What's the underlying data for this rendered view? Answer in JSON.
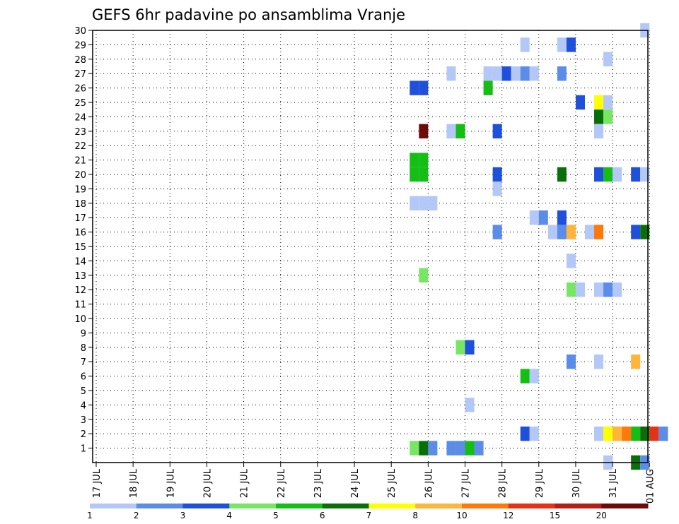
{
  "chart_data": {
    "type": "heatmap",
    "title": "GEFS 6hr padavine po ansamblima Vranje",
    "xlabel": "",
    "ylabel": "",
    "x_tick_labels": [
      "17 JUL",
      "18 JUL",
      "19 JUL",
      "20 JUL",
      "21 JUL",
      "22 JUL",
      "23 JUL",
      "24 JUL",
      "25 JUL",
      "26 JUL",
      "27 JUL",
      "28 JUL",
      "29 JUL",
      "30 JUL",
      "31 JUL",
      "01 AUG"
    ],
    "x_range_days": [
      0,
      15
    ],
    "y_range": [
      0,
      30
    ],
    "y_ticks": [
      1,
      2,
      3,
      4,
      5,
      6,
      7,
      8,
      9,
      10,
      11,
      12,
      13,
      14,
      15,
      16,
      17,
      18,
      19,
      20,
      21,
      22,
      23,
      24,
      25,
      26,
      27,
      28,
      29,
      30
    ],
    "grid": "dotted",
    "legend": "bottom",
    "colorbar": {
      "labels": [
        "1",
        "2",
        "3",
        "4",
        "5",
        "6",
        "7",
        "8",
        "10",
        "12",
        "15",
        "20"
      ],
      "colors": [
        "#b4c8f8",
        "#5a8ce8",
        "#1e50dc",
        "#78e664",
        "#14be14",
        "#0a6e0a",
        "#ffff00",
        "#ffb43c",
        "#ff780a",
        "#e63214",
        "#b41e14",
        "#6e0a0a"
      ]
    },
    "units_note": "x in days after 17 JUL 00Z, cell width 0.25 day (6 h); y = ensemble member; c = colour class index",
    "cells": [
      {
        "x": 14.75,
        "y": 30,
        "c": 0
      },
      {
        "x": 11.5,
        "y": 29,
        "c": 0
      },
      {
        "x": 12.5,
        "y": 29,
        "c": 0
      },
      {
        "x": 12.75,
        "y": 29,
        "c": 2
      },
      {
        "x": 13.75,
        "y": 28,
        "c": 0
      },
      {
        "x": 9.5,
        "y": 27,
        "c": 0
      },
      {
        "x": 10.5,
        "y": 27,
        "c": 0
      },
      {
        "x": 10.75,
        "y": 27,
        "c": 0
      },
      {
        "x": 11.0,
        "y": 27,
        "c": 2
      },
      {
        "x": 11.25,
        "y": 27,
        "c": 0
      },
      {
        "x": 11.5,
        "y": 27,
        "c": 1
      },
      {
        "x": 11.75,
        "y": 27,
        "c": 0
      },
      {
        "x": 12.5,
        "y": 27,
        "c": 1
      },
      {
        "x": 8.5,
        "y": 26,
        "c": 2
      },
      {
        "x": 8.75,
        "y": 26,
        "c": 2
      },
      {
        "x": 10.5,
        "y": 26,
        "c": 4
      },
      {
        "x": 13.0,
        "y": 25,
        "c": 2
      },
      {
        "x": 13.5,
        "y": 25,
        "c": 6
      },
      {
        "x": 13.75,
        "y": 25,
        "c": 0
      },
      {
        "x": 13.5,
        "y": 24,
        "c": 5
      },
      {
        "x": 13.75,
        "y": 24,
        "c": 3
      },
      {
        "x": 8.75,
        "y": 23,
        "c": 11
      },
      {
        "x": 9.5,
        "y": 23,
        "c": 0
      },
      {
        "x": 9.75,
        "y": 23,
        "c": 4
      },
      {
        "x": 10.75,
        "y": 23,
        "c": 2
      },
      {
        "x": 13.5,
        "y": 23,
        "c": 0
      },
      {
        "x": 8.5,
        "y": 21,
        "c": 4
      },
      {
        "x": 8.75,
        "y": 21,
        "c": 4
      },
      {
        "x": 8.5,
        "y": 20,
        "c": 4
      },
      {
        "x": 8.75,
        "y": 20,
        "c": 4
      },
      {
        "x": 10.75,
        "y": 20,
        "c": 2
      },
      {
        "x": 12.5,
        "y": 20,
        "c": 5
      },
      {
        "x": 13.5,
        "y": 20,
        "c": 2
      },
      {
        "x": 13.75,
        "y": 20,
        "c": 4
      },
      {
        "x": 14.0,
        "y": 20,
        "c": 0
      },
      {
        "x": 14.5,
        "y": 20,
        "c": 2
      },
      {
        "x": 14.75,
        "y": 20,
        "c": 0
      },
      {
        "x": 10.75,
        "y": 19,
        "c": 0
      },
      {
        "x": 8.5,
        "y": 18,
        "c": 0
      },
      {
        "x": 8.75,
        "y": 18,
        "c": 0
      },
      {
        "x": 9.0,
        "y": 18,
        "c": 0
      },
      {
        "x": 11.75,
        "y": 17,
        "c": 0
      },
      {
        "x": 12.0,
        "y": 17,
        "c": 1
      },
      {
        "x": 12.5,
        "y": 17,
        "c": 2
      },
      {
        "x": 10.75,
        "y": 16,
        "c": 1
      },
      {
        "x": 12.25,
        "y": 16,
        "c": 0
      },
      {
        "x": 12.5,
        "y": 16,
        "c": 1
      },
      {
        "x": 12.75,
        "y": 16,
        "c": 7
      },
      {
        "x": 13.25,
        "y": 16,
        "c": 0
      },
      {
        "x": 13.5,
        "y": 16,
        "c": 8
      },
      {
        "x": 14.5,
        "y": 16,
        "c": 2
      },
      {
        "x": 14.75,
        "y": 16,
        "c": 5
      },
      {
        "x": 12.75,
        "y": 14,
        "c": 0
      },
      {
        "x": 8.75,
        "y": 13,
        "c": 3
      },
      {
        "x": 12.75,
        "y": 12,
        "c": 3
      },
      {
        "x": 13.0,
        "y": 12,
        "c": 0
      },
      {
        "x": 13.5,
        "y": 12,
        "c": 0
      },
      {
        "x": 13.75,
        "y": 12,
        "c": 1
      },
      {
        "x": 14.0,
        "y": 12,
        "c": 0
      },
      {
        "x": 9.75,
        "y": 8,
        "c": 3
      },
      {
        "x": 10.0,
        "y": 8,
        "c": 2
      },
      {
        "x": 12.75,
        "y": 7,
        "c": 1
      },
      {
        "x": 13.5,
        "y": 7,
        "c": 0
      },
      {
        "x": 14.5,
        "y": 7,
        "c": 7
      },
      {
        "x": 11.5,
        "y": 6,
        "c": 4
      },
      {
        "x": 11.75,
        "y": 6,
        "c": 0
      },
      {
        "x": 10.0,
        "y": 4,
        "c": 0
      },
      {
        "x": 11.5,
        "y": 2,
        "c": 2
      },
      {
        "x": 11.75,
        "y": 2,
        "c": 0
      },
      {
        "x": 13.5,
        "y": 2,
        "c": 0
      },
      {
        "x": 13.75,
        "y": 2,
        "c": 6
      },
      {
        "x": 14.0,
        "y": 2,
        "c": 7
      },
      {
        "x": 14.25,
        "y": 2,
        "c": 8
      },
      {
        "x": 14.5,
        "y": 2,
        "c": 4
      },
      {
        "x": 14.75,
        "y": 2,
        "c": 5
      },
      {
        "x": 15.0,
        "y": 2,
        "c": 9
      },
      {
        "x": 15.25,
        "y": 2,
        "c": 1
      },
      {
        "x": 8.5,
        "y": 1,
        "c": 3
      },
      {
        "x": 8.75,
        "y": 1,
        "c": 5
      },
      {
        "x": 9.0,
        "y": 1,
        "c": 1
      },
      {
        "x": 9.5,
        "y": 1,
        "c": 1
      },
      {
        "x": 9.75,
        "y": 1,
        "c": 1
      },
      {
        "x": 10.0,
        "y": 1,
        "c": 4
      },
      {
        "x": 10.25,
        "y": 1,
        "c": 1
      },
      {
        "x": 13.75,
        "y": 0,
        "c": 0
      },
      {
        "x": 14.5,
        "y": 0,
        "c": 5
      },
      {
        "x": 14.75,
        "y": 0,
        "c": 1
      }
    ]
  }
}
